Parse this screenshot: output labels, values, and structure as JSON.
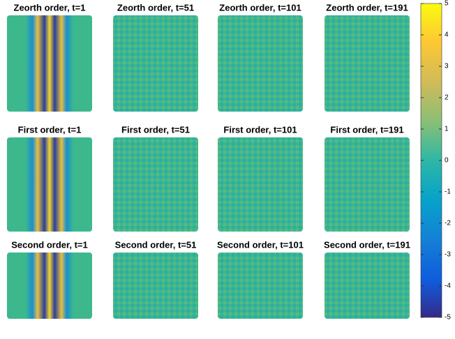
{
  "chart_data": {
    "type": "image-grid",
    "panels": [
      {
        "title": "Zeorth order, t=1"
      },
      {
        "title": "Zeorth order, t=51"
      },
      {
        "title": "Zeorth order, t=101"
      },
      {
        "title": "Zeorth order, t=191"
      },
      {
        "title": "First order, t=1"
      },
      {
        "title": "First order, t=51"
      },
      {
        "title": "First order, t=101"
      },
      {
        "title": "First order, t=191"
      },
      {
        "title": "Second order, t=1"
      },
      {
        "title": "Second order, t=51"
      },
      {
        "title": "Second order, t=101"
      },
      {
        "title": "Second order, t=191"
      }
    ],
    "colorbar": {
      "ylim": [
        -5,
        5
      ],
      "yticks": [
        -5,
        -4,
        -3,
        -2,
        -1,
        0,
        1,
        2,
        3,
        4,
        5
      ]
    }
  }
}
